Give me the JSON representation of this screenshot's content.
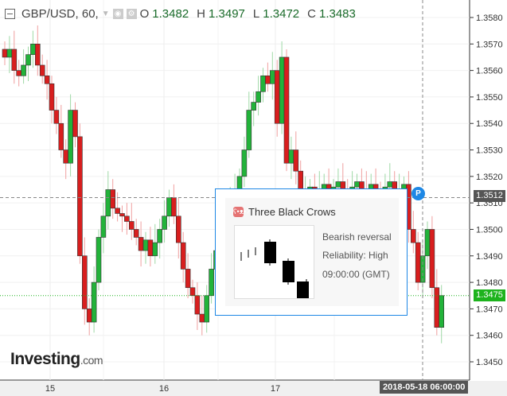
{
  "header": {
    "symbol": "GBP/USD, 60,",
    "o_label": "O",
    "o": "1.3482",
    "h_label": "H",
    "h": "1.3497",
    "l_label": "L",
    "l": "1.3472",
    "c_label": "C",
    "c": "1.3483"
  },
  "pattern": {
    "title": "Three Black Crows",
    "signal": "Bearish reversal",
    "reliability": "Reliability: High",
    "time": "09:00:00 (GMT)"
  },
  "crosshair": {
    "price": "1.3512",
    "date": "2018-05-18 06:00:00",
    "marker": "P"
  },
  "current_price": "1.3475",
  "logo": {
    "main": "Investing",
    "suffix": ".com"
  },
  "colors": {
    "up": "#22b33a",
    "down": "#d81e1e",
    "accent": "#1e88e5",
    "current": "#1db31d"
  },
  "chart_data": {
    "type": "candlestick",
    "x_ticks": [
      "15",
      "16",
      "17"
    ],
    "y_ticks": [
      "1.3580",
      "1.3570",
      "1.3560",
      "1.3550",
      "1.3540",
      "1.3530",
      "1.3520",
      "1.3510",
      "1.3500",
      "1.3490",
      "1.3480",
      "1.3470",
      "1.3460",
      "1.3450"
    ],
    "ylim": [
      1.3445,
      1.3585
    ],
    "interval": "60",
    "closes": [
      1.3565,
      1.3568,
      1.356,
      1.3558,
      1.3562,
      1.3566,
      1.357,
      1.3562,
      1.3558,
      1.3555,
      1.3545,
      1.354,
      1.353,
      1.3525,
      1.3545,
      1.3535,
      1.349,
      1.347,
      1.3465,
      1.348,
      1.3497,
      1.3505,
      1.3515,
      1.3508,
      1.3506,
      1.3505,
      1.3503,
      1.35,
      1.3497,
      1.3492,
      1.3496,
      1.349,
      1.3495,
      1.35,
      1.3505,
      1.3512,
      1.3505,
      1.3495,
      1.3485,
      1.3478,
      1.3475,
      1.3468,
      1.3465,
      1.3475,
      1.3485,
      1.3492,
      1.35,
      1.3508,
      1.3512,
      1.3515,
      1.352,
      1.353,
      1.3545,
      1.3548,
      1.3552,
      1.3558,
      1.3555,
      1.356,
      1.354,
      1.3565,
      1.3525,
      1.353,
      1.3522,
      1.3512,
      1.3514,
      1.3516,
      1.3513,
      1.3515,
      1.3517,
      1.3514,
      1.3516,
      1.3518,
      1.3515,
      1.3513,
      1.3516,
      1.3518,
      1.3515,
      1.3514,
      1.3517,
      1.3515,
      1.3513,
      1.3516,
      1.3518,
      1.3514,
      1.3515,
      1.3517,
      1.35,
      1.3495,
      1.348,
      1.349,
      1.35,
      1.3478,
      1.3463,
      1.3475
    ]
  }
}
